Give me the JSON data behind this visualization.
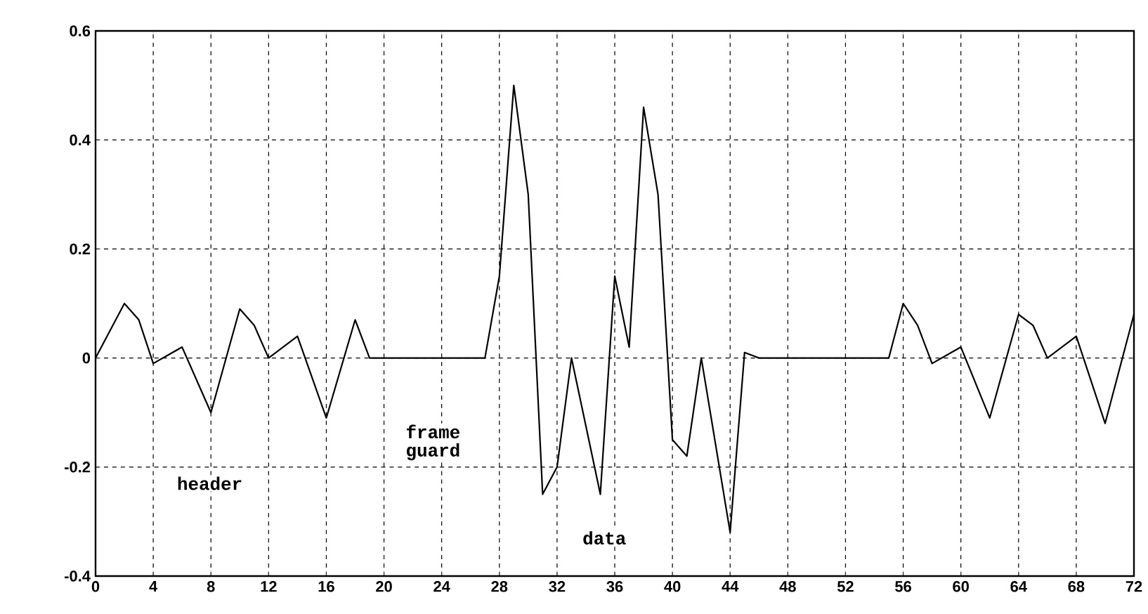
{
  "chart_data": {
    "type": "line",
    "x": [
      0,
      2,
      3,
      4,
      6,
      8,
      10,
      11,
      12,
      14,
      16,
      18,
      19,
      27,
      28,
      29,
      30,
      31,
      32,
      33,
      35,
      36,
      37,
      38,
      39,
      40,
      41,
      42,
      44,
      45,
      46,
      55,
      56,
      57,
      58,
      60,
      62,
      64,
      65,
      66,
      68,
      70,
      72
    ],
    "series": [
      {
        "color": "#000000",
        "values": [
          0,
          0.1,
          0.07,
          -0.01,
          0.02,
          -0.1,
          0.09,
          0.06,
          0,
          0.04,
          -0.11,
          0.07,
          0,
          0,
          0.15,
          0.5,
          0.3,
          -0.25,
          -0.2,
          0,
          -0.25,
          0.15,
          0.02,
          0.46,
          0.3,
          -0.15,
          -0.18,
          0,
          -0.32,
          0.01,
          0,
          0,
          0.1,
          0.06,
          -0.01,
          0.02,
          -0.11,
          0.08,
          0.06,
          0,
          0.04,
          -0.12,
          0.08
        ]
      }
    ],
    "xlim": [
      0,
      72
    ],
    "xticks": [
      0,
      4,
      8,
      12,
      16,
      20,
      24,
      28,
      32,
      36,
      40,
      44,
      48,
      52,
      56,
      60,
      64,
      68,
      72
    ],
    "ylim": [
      -0.4,
      0.6
    ],
    "yticks": [
      -0.4,
      -0.2,
      0,
      0.2,
      0.4,
      0.6
    ],
    "grid": true,
    "line_style": "solid",
    "marker": "none",
    "annotations": [
      "header",
      "frame guard",
      "data"
    ]
  }
}
